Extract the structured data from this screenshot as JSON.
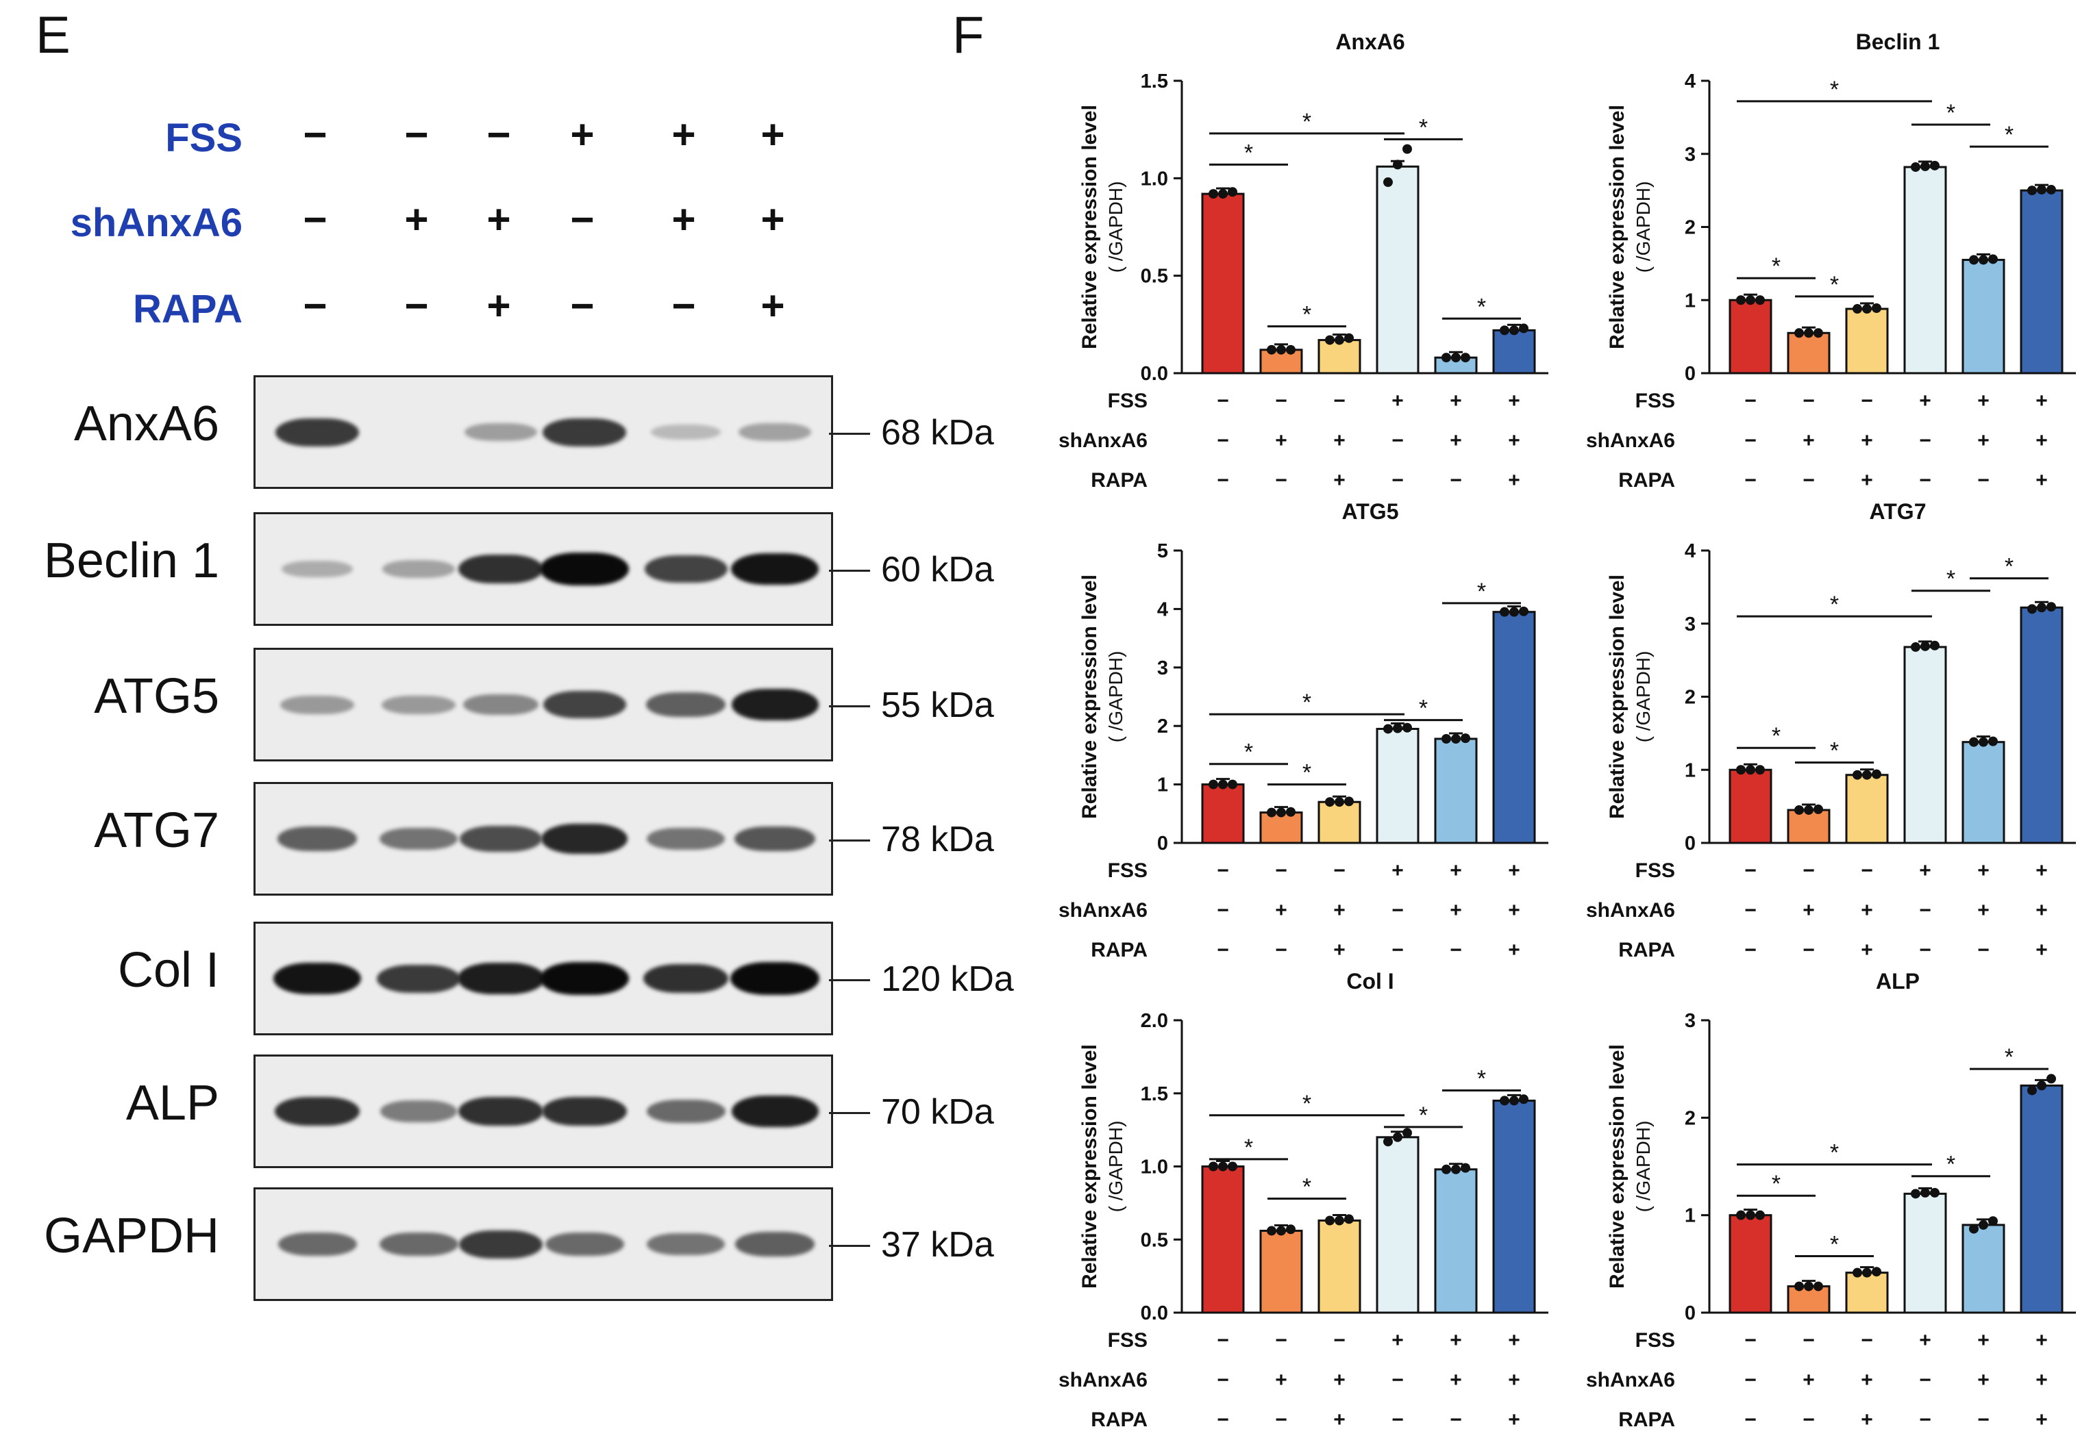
{
  "panels": {
    "left": "E",
    "right": "F"
  },
  "conditions": [
    {
      "label": "FSS",
      "signs": [
        "−",
        "−",
        "−",
        "+",
        "+",
        "+"
      ]
    },
    {
      "label": "shAnxA6",
      "signs": [
        "−",
        "+",
        "+",
        "−",
        "+",
        "+"
      ]
    },
    {
      "label": "RAPA",
      "signs": [
        "−",
        "−",
        "+",
        "−",
        "−",
        "+"
      ]
    }
  ],
  "blots": [
    {
      "name": "AnxA6",
      "kda": "68 kDa",
      "intensity": [
        0.75,
        0.0,
        0.22,
        0.75,
        0.08,
        0.2
      ]
    },
    {
      "name": "Beclin 1",
      "kda": "60 kDa",
      "intensity": [
        0.15,
        0.2,
        0.8,
        1.0,
        0.7,
        0.95
      ]
    },
    {
      "name": "ATG5",
      "kda": "55 kDa",
      "intensity": [
        0.25,
        0.25,
        0.35,
        0.7,
        0.55,
        0.9
      ]
    },
    {
      "name": "ATG7",
      "kda": "78 kDa",
      "intensity": [
        0.55,
        0.45,
        0.65,
        0.85,
        0.45,
        0.6
      ]
    },
    {
      "name": "Col I",
      "kda": "120 kDa",
      "intensity": [
        0.95,
        0.75,
        0.9,
        1.0,
        0.8,
        1.0
      ]
    },
    {
      "name": "ALP",
      "kda": "70 kDa",
      "intensity": [
        0.8,
        0.4,
        0.8,
        0.8,
        0.5,
        0.9
      ]
    },
    {
      "name": "GAPDH",
      "kda": "37 kDa",
      "intensity": [
        0.5,
        0.5,
        0.75,
        0.5,
        0.45,
        0.55
      ]
    }
  ],
  "bar_colors": [
    "#d7302a",
    "#f28a4e",
    "#fad47c",
    "#e3f1f5",
    "#8fc1e3",
    "#3a67b0"
  ],
  "chart_data": [
    {
      "type": "bar",
      "title": "AnxA6",
      "ylabel": "Relative expression level",
      "ylabel2": "( /GAPDH)",
      "ylim": [
        0,
        1.5
      ],
      "yticks": [
        "0.0",
        "0.5",
        "1.0",
        "1.5"
      ],
      "values": [
        0.92,
        0.12,
        0.17,
        1.06,
        0.08,
        0.22
      ],
      "points": [
        [
          0.92,
          0.92,
          0.93
        ],
        [
          0.12,
          0.12,
          0.12
        ],
        [
          0.17,
          0.17,
          0.18
        ],
        [
          0.98,
          1.07,
          1.15
        ],
        [
          0.08,
          0.08,
          0.08
        ],
        [
          0.22,
          0.22,
          0.23
        ]
      ],
      "sig": [
        {
          "from": 0,
          "to": 3,
          "level": 1.23,
          "label": "*"
        },
        {
          "from": 0,
          "to": 1,
          "level": 1.07,
          "label": "*"
        },
        {
          "from": 1,
          "to": 2,
          "level": 0.24,
          "label": "*"
        },
        {
          "from": 3,
          "to": 4,
          "level": 1.2,
          "label": "*"
        },
        {
          "from": 4,
          "to": 5,
          "level": 0.28,
          "label": "*"
        }
      ],
      "fss": [
        "−",
        "−",
        "−",
        "+",
        "+",
        "+"
      ],
      "shanxa6": [
        "−",
        "+",
        "+",
        "−",
        "+",
        "+"
      ],
      "rapa": [
        "−",
        "−",
        "+",
        "−",
        "−",
        "+"
      ]
    },
    {
      "type": "bar",
      "title": "Beclin 1",
      "ylabel": "Relative expression level",
      "ylabel2": "( /GAPDH)",
      "ylim": [
        0,
        4
      ],
      "yticks": [
        "0",
        "1",
        "2",
        "3",
        "4"
      ],
      "values": [
        1.0,
        0.55,
        0.88,
        2.82,
        1.55,
        2.5
      ],
      "points": [
        [
          1.0,
          1.0,
          1.0
        ],
        [
          0.55,
          0.55,
          0.55
        ],
        [
          0.88,
          0.88,
          0.89
        ],
        [
          2.82,
          2.83,
          2.84
        ],
        [
          1.55,
          1.55,
          1.56
        ],
        [
          2.5,
          2.51,
          2.51
        ]
      ],
      "sig": [
        {
          "from": 0,
          "to": 3,
          "level": 3.72,
          "label": "*"
        },
        {
          "from": 0,
          "to": 1,
          "level": 1.3,
          "label": "*"
        },
        {
          "from": 1,
          "to": 2,
          "level": 1.05,
          "label": "*"
        },
        {
          "from": 3,
          "to": 4,
          "level": 3.4,
          "label": "*"
        },
        {
          "from": 4,
          "to": 5,
          "level": 3.1,
          "label": "*"
        }
      ],
      "fss": [
        "−",
        "−",
        "−",
        "+",
        "+",
        "+"
      ],
      "shanxa6": [
        "−",
        "+",
        "+",
        "−",
        "+",
        "+"
      ],
      "rapa": [
        "−",
        "−",
        "+",
        "−",
        "−",
        "+"
      ]
    },
    {
      "type": "bar",
      "title": "ATG5",
      "ylabel": "Relative expression level",
      "ylabel2": "( /GAPDH)",
      "ylim": [
        0,
        5
      ],
      "yticks": [
        "0",
        "1",
        "2",
        "3",
        "4",
        "5"
      ],
      "values": [
        1.0,
        0.52,
        0.7,
        1.95,
        1.78,
        3.95
      ],
      "points": [
        [
          1.0,
          1.0,
          1.0
        ],
        [
          0.52,
          0.52,
          0.53
        ],
        [
          0.7,
          0.7,
          0.71
        ],
        [
          1.95,
          1.96,
          1.97
        ],
        [
          1.78,
          1.78,
          1.79
        ],
        [
          3.95,
          3.95,
          3.96
        ]
      ],
      "sig": [
        {
          "from": 0,
          "to": 3,
          "level": 2.2,
          "label": "*"
        },
        {
          "from": 0,
          "to": 1,
          "level": 1.35,
          "label": "*"
        },
        {
          "from": 1,
          "to": 2,
          "level": 1.0,
          "label": "*"
        },
        {
          "from": 3,
          "to": 4,
          "level": 2.1,
          "label": "*"
        },
        {
          "from": 4,
          "to": 5,
          "level": 4.1,
          "label": "*"
        }
      ],
      "fss": [
        "−",
        "−",
        "−",
        "+",
        "+",
        "+"
      ],
      "shanxa6": [
        "−",
        "+",
        "+",
        "−",
        "+",
        "+"
      ],
      "rapa": [
        "−",
        "−",
        "+",
        "−",
        "−",
        "+"
      ]
    },
    {
      "type": "bar",
      "title": "ATG7",
      "ylabel": "Relative expression level",
      "ylabel2": "( /GAPDH)",
      "ylim": [
        0,
        4
      ],
      "yticks": [
        "0",
        "1",
        "2",
        "3",
        "4"
      ],
      "values": [
        1.0,
        0.45,
        0.93,
        2.68,
        1.38,
        3.22
      ],
      "points": [
        [
          1.0,
          1.0,
          1.0
        ],
        [
          0.45,
          0.45,
          0.46
        ],
        [
          0.93,
          0.93,
          0.94
        ],
        [
          2.68,
          2.69,
          2.7
        ],
        [
          1.38,
          1.38,
          1.39
        ],
        [
          3.2,
          3.22,
          3.23
        ]
      ],
      "sig": [
        {
          "from": 0,
          "to": 3,
          "level": 3.1,
          "label": "*"
        },
        {
          "from": 0,
          "to": 1,
          "level": 1.3,
          "label": "*"
        },
        {
          "from": 1,
          "to": 2,
          "level": 1.1,
          "label": "*"
        },
        {
          "from": 3,
          "to": 4,
          "level": 3.45,
          "label": "*"
        },
        {
          "from": 4,
          "to": 5,
          "level": 3.62,
          "label": "*"
        }
      ],
      "fss": [
        "−",
        "−",
        "−",
        "+",
        "+",
        "+"
      ],
      "shanxa6": [
        "−",
        "+",
        "+",
        "−",
        "+",
        "+"
      ],
      "rapa": [
        "−",
        "−",
        "+",
        "−",
        "−",
        "+"
      ]
    },
    {
      "type": "bar",
      "title": "Col I",
      "ylabel": "Relative expression level",
      "ylabel2": "( /GAPDH)",
      "ylim": [
        0,
        2.0
      ],
      "yticks": [
        "0.0",
        "0.5",
        "1.0",
        "1.5",
        "2.0"
      ],
      "values": [
        1.0,
        0.56,
        0.63,
        1.2,
        0.98,
        1.45
      ],
      "points": [
        [
          1.0,
          1.0,
          1.0
        ],
        [
          0.56,
          0.56,
          0.57
        ],
        [
          0.63,
          0.63,
          0.64
        ],
        [
          1.17,
          1.2,
          1.23
        ],
        [
          0.98,
          0.98,
          0.99
        ],
        [
          1.45,
          1.45,
          1.46
        ]
      ],
      "sig": [
        {
          "from": 0,
          "to": 3,
          "level": 1.35,
          "label": "*"
        },
        {
          "from": 0,
          "to": 1,
          "level": 1.05,
          "label": "*"
        },
        {
          "from": 1,
          "to": 2,
          "level": 0.78,
          "label": "*"
        },
        {
          "from": 3,
          "to": 4,
          "level": 1.27,
          "label": "*"
        },
        {
          "from": 4,
          "to": 5,
          "level": 1.52,
          "label": "*"
        }
      ],
      "fss": [
        "−",
        "−",
        "−",
        "+",
        "+",
        "+"
      ],
      "shanxa6": [
        "−",
        "+",
        "+",
        "−",
        "+",
        "+"
      ],
      "rapa": [
        "−",
        "−",
        "+",
        "−",
        "−",
        "+"
      ]
    },
    {
      "type": "bar",
      "title": "ALP",
      "ylabel": "Relative expression level",
      "ylabel2": "( /GAPDH)",
      "ylim": [
        0,
        3
      ],
      "yticks": [
        "0",
        "1",
        "2",
        "3"
      ],
      "values": [
        1.0,
        0.27,
        0.41,
        1.22,
        0.9,
        2.33
      ],
      "points": [
        [
          1.0,
          1.0,
          1.0
        ],
        [
          0.27,
          0.27,
          0.27
        ],
        [
          0.41,
          0.41,
          0.42
        ],
        [
          1.22,
          1.23,
          1.23
        ],
        [
          0.86,
          0.9,
          0.94
        ],
        [
          2.28,
          2.33,
          2.4
        ]
      ],
      "sig": [
        {
          "from": 0,
          "to": 3,
          "level": 1.52,
          "label": "*"
        },
        {
          "from": 0,
          "to": 1,
          "level": 1.2,
          "label": "*"
        },
        {
          "from": 1,
          "to": 2,
          "level": 0.58,
          "label": "*"
        },
        {
          "from": 3,
          "to": 4,
          "level": 1.4,
          "label": "*"
        },
        {
          "from": 4,
          "to": 5,
          "level": 2.5,
          "label": "*"
        }
      ],
      "fss": [
        "−",
        "−",
        "−",
        "+",
        "+",
        "+"
      ],
      "shanxa6": [
        "−",
        "+",
        "+",
        "−",
        "+",
        "+"
      ],
      "rapa": [
        "−",
        "−",
        "+",
        "−",
        "−",
        "+"
      ]
    }
  ],
  "row_labels": {
    "fss": "FSS",
    "shanxa6": "shAnxA6",
    "rapa": "RAPA"
  }
}
